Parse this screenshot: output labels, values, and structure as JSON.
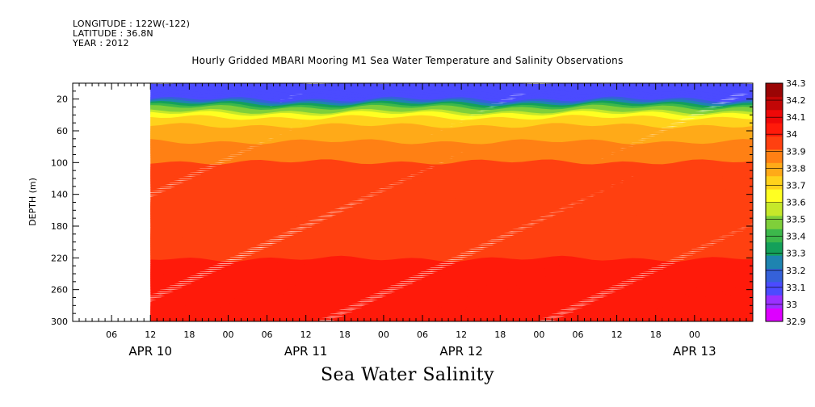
{
  "header": {
    "longitude": "LONGITUDE : 122W(-122)",
    "latitude": "LATITUDE : 36.8N",
    "year": "YEAR : 2012"
  },
  "chart_data": {
    "type": "heatmap",
    "title": "Hourly Gridded MBARI Mooring M1 Sea Water Temperature and Salinity Observations",
    "variable_title": "Sea Water Salinity",
    "ylabel": "DEPTH (m)",
    "ylim": [
      300,
      0
    ],
    "y_ticks": [
      20,
      60,
      100,
      140,
      180,
      220,
      260,
      300
    ],
    "x_hour_ticks": [
      {
        "label": "06",
        "h": 6
      },
      {
        "label": "12",
        "h": 12
      },
      {
        "label": "18",
        "h": 18
      },
      {
        "label": "00",
        "h": 24
      },
      {
        "label": "06",
        "h": 30
      },
      {
        "label": "12",
        "h": 36
      },
      {
        "label": "18",
        "h": 42
      },
      {
        "label": "00",
        "h": 48
      },
      {
        "label": "06",
        "h": 54
      },
      {
        "label": "12",
        "h": 60
      },
      {
        "label": "18",
        "h": 66
      },
      {
        "label": "00",
        "h": 72
      },
      {
        "label": "06",
        "h": 78
      },
      {
        "label": "12",
        "h": 84
      },
      {
        "label": "18",
        "h": 90
      },
      {
        "label": "00",
        "h": 96
      }
    ],
    "x_date_labels": [
      {
        "label": "APR 10",
        "h": 12
      },
      {
        "label": "APR 11",
        "h": 36
      },
      {
        "label": "APR 12",
        "h": 60
      },
      {
        "label": "APR 13",
        "h": 96
      }
    ],
    "xlim_hours": [
      0,
      105
    ],
    "data_start_hour": 12,
    "colorbar_levels": [
      32.9,
      33,
      33.1,
      33.2,
      33.3,
      33.4,
      33.5,
      33.6,
      33.7,
      33.8,
      33.9,
      34,
      34.1,
      34.2,
      34.3
    ],
    "colorbar_colors": [
      "#dd00ff",
      "#9b30ff",
      "#4b4bff",
      "#3561d9",
      "#1e84b0",
      "#14a05a",
      "#3cb84b",
      "#7fcf3a",
      "#c6e82a",
      "#ffff22",
      "#ffd21c",
      "#ffaa18",
      "#ff8014",
      "#ff4010",
      "#ff1a0a",
      "#ee0808",
      "#c20606",
      "#9a0505"
    ],
    "depth_profile": [
      {
        "depth": 10,
        "salinity": 33.05
      },
      {
        "depth": 20,
        "salinity": 33.1
      },
      {
        "depth": 30,
        "salinity": 33.45
      },
      {
        "depth": 40,
        "salinity": 33.75
      },
      {
        "depth": 50,
        "salinity": 33.88
      },
      {
        "depth": 60,
        "salinity": 33.95
      },
      {
        "depth": 80,
        "salinity": 34.02
      },
      {
        "depth": 100,
        "salinity": 34.1
      },
      {
        "depth": 130,
        "salinity": 34.15
      },
      {
        "depth": 150,
        "salinity": 34.2
      },
      {
        "depth": 180,
        "salinity": 34.17
      },
      {
        "depth": 220,
        "salinity": 34.2
      },
      {
        "depth": 260,
        "salinity": 34.3
      },
      {
        "depth": 300,
        "salinity": 34.25
      }
    ]
  }
}
